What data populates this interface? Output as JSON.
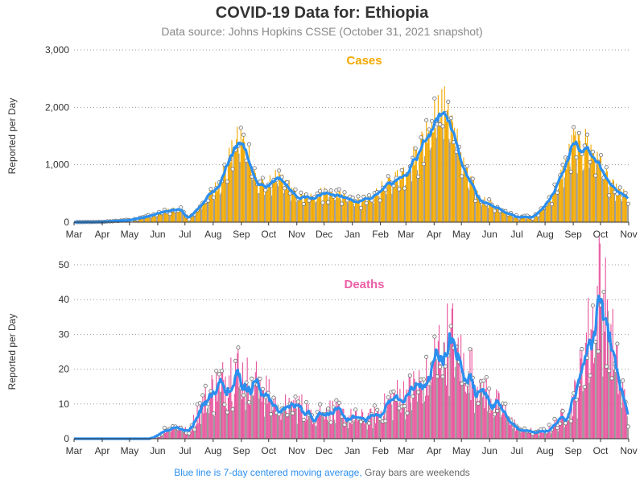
{
  "title": "COVID-19 Data for: Ethiopia",
  "subtitle": "Data source: Johns Hopkins CSSE (October 31, 2021 snapshot)",
  "footer": {
    "blue_text": "Blue line is 7-day centered moving average,",
    "gray_text": "Gray bars are weekends"
  },
  "colors": {
    "cases_bar": "#f2a900",
    "deaths_bar": "#e8579e",
    "moving_average": "#2b8ff0",
    "weekend_bar": "#999999",
    "cases_title": "#f2a900",
    "deaths_title": "#ec5fa6"
  },
  "chart_data": [
    {
      "type": "bar",
      "panel_title": "Cases",
      "ylabel": "Reported per Day",
      "ylim": [
        0,
        3000
      ],
      "yticks": [
        0,
        1000,
        2000,
        3000
      ],
      "ytick_labels": [
        "0",
        "1,000",
        "2,000",
        "3,000"
      ],
      "grid": "horizontal dotted",
      "x_tick_labels": [
        "Mar",
        "Apr",
        "May",
        "Jun",
        "Jul",
        "Aug",
        "Sep",
        "Oct",
        "Nov",
        "Dec",
        "Jan",
        "Feb",
        "Mar",
        "Apr",
        "May",
        "Jun",
        "Jul",
        "Aug",
        "Sep",
        "Oct",
        "Nov"
      ],
      "x_range": [
        "2020-03-01",
        "2021-11-01"
      ],
      "daily_values": "bars from 2020-03-01 to 2021-10-31, shape given by weekly anchor values below",
      "weekly_approx_values": {
        "dates": [
          "2020-03-01",
          "2020-04-01",
          "2020-05-01",
          "2020-05-20",
          "2020-06-10",
          "2020-06-25",
          "2020-07-05",
          "2020-07-15",
          "2020-07-25",
          "2020-08-05",
          "2020-08-15",
          "2020-08-22",
          "2020-08-30",
          "2020-09-08",
          "2020-09-18",
          "2020-09-28",
          "2020-10-08",
          "2020-10-20",
          "2020-11-01",
          "2020-11-15",
          "2020-12-01",
          "2020-12-15",
          "2021-01-01",
          "2021-01-20",
          "2021-02-01",
          "2021-02-15",
          "2021-03-01",
          "2021-03-15",
          "2021-03-25",
          "2021-04-05",
          "2021-04-15",
          "2021-04-25",
          "2021-05-05",
          "2021-05-20",
          "2021-06-05",
          "2021-06-20",
          "2021-07-01",
          "2021-07-20",
          "2021-08-01",
          "2021-08-15",
          "2021-08-25",
          "2021-09-01",
          "2021-09-08",
          "2021-09-15",
          "2021-09-22",
          "2021-10-01",
          "2021-10-10",
          "2021-10-20",
          "2021-10-31"
        ],
        "values": [
          0,
          5,
          40,
          100,
          200,
          250,
          60,
          250,
          450,
          650,
          1000,
          1300,
          1500,
          1300,
          700,
          650,
          800,
          700,
          450,
          450,
          550,
          500,
          400,
          400,
          600,
          750,
          950,
          1300,
          1700,
          2000,
          2050,
          1500,
          900,
          450,
          300,
          170,
          100,
          100,
          300,
          700,
          1100,
          1450,
          1300,
          1450,
          1250,
          1050,
          700,
          550,
          450
        ]
      },
      "moving_average": "7-day centered moving average line"
    },
    {
      "type": "bar",
      "panel_title": "Deaths",
      "ylabel": "Reported per Day",
      "ylim": [
        0,
        50
      ],
      "yticks": [
        0,
        10,
        20,
        30,
        40,
        50
      ],
      "ytick_labels": [
        "0",
        "10",
        "20",
        "30",
        "40",
        "50"
      ],
      "grid": "horizontal dotted",
      "x_tick_labels": [
        "Mar",
        "Apr",
        "May",
        "Jun",
        "Jul",
        "Aug",
        "Sep",
        "Oct",
        "Nov",
        "Dec",
        "Jan",
        "Feb",
        "Mar",
        "Apr",
        "May",
        "Jun",
        "Jul",
        "Aug",
        "Sep",
        "Oct",
        "Nov"
      ],
      "x_range": [
        "2020-03-01",
        "2021-11-01"
      ],
      "weekly_approx_values": {
        "dates": [
          "2020-03-01",
          "2020-04-01",
          "2020-05-01",
          "2020-05-25",
          "2020-06-05",
          "2020-06-20",
          "2020-07-05",
          "2020-07-15",
          "2020-07-30",
          "2020-08-10",
          "2020-08-25",
          "2020-09-05",
          "2020-09-20",
          "2020-10-01",
          "2020-10-15",
          "2020-11-01",
          "2020-11-20",
          "2020-12-01",
          "2020-12-20",
          "2021-01-01",
          "2021-01-20",
          "2021-02-01",
          "2021-02-15",
          "2021-03-01",
          "2021-03-15",
          "2021-03-25",
          "2021-04-05",
          "2021-04-20",
          "2021-05-01",
          "2021-05-15",
          "2021-06-01",
          "2021-06-20",
          "2021-07-01",
          "2021-07-20",
          "2021-08-01",
          "2021-08-15",
          "2021-08-25",
          "2021-09-05",
          "2021-09-15",
          "2021-09-25",
          "2021-10-01",
          "2021-10-10",
          "2021-10-20",
          "2021-10-31"
        ],
        "values": [
          0,
          0,
          0,
          0,
          2,
          4,
          2,
          8,
          14,
          16,
          21,
          17,
          17,
          12,
          9,
          10,
          7,
          9,
          7,
          6,
          6,
          8,
          12,
          13,
          16,
          17,
          26,
          29,
          22,
          18,
          12,
          7,
          3,
          2,
          2,
          5,
          8,
          14,
          28,
          35,
          46,
          33,
          18,
          8
        ]
      },
      "moving_average": "7-day centered moving average line"
    }
  ]
}
